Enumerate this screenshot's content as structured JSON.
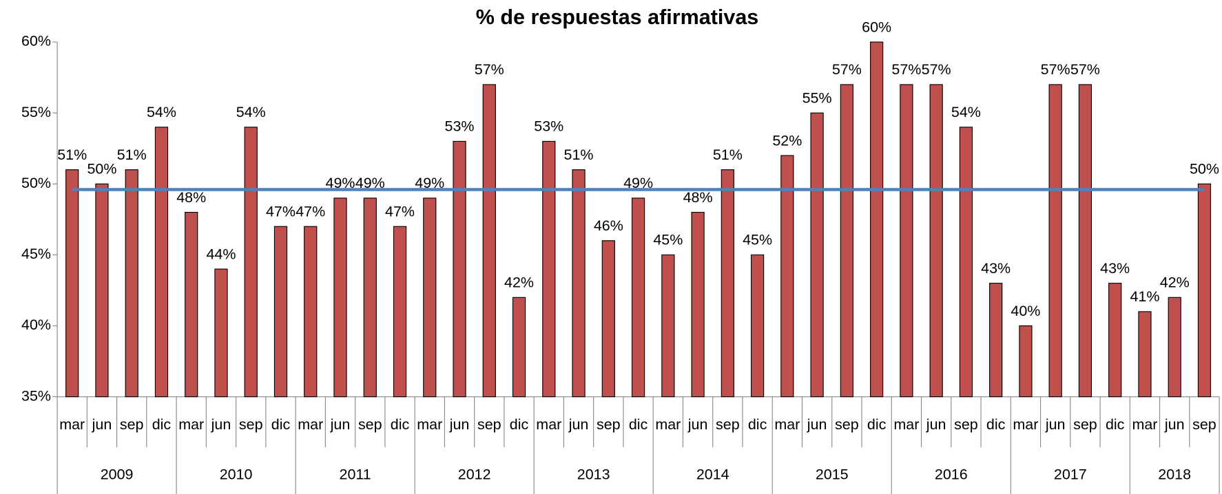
{
  "chart_data": {
    "type": "bar",
    "title": "% de respuestas afirmativas",
    "groups": [
      {
        "label": "2009",
        "categories": [
          "mar",
          "jun",
          "sep",
          "dic"
        ]
      },
      {
        "label": "2010",
        "categories": [
          "mar",
          "jun",
          "sep",
          "dic"
        ]
      },
      {
        "label": "2011",
        "categories": [
          "mar",
          "jun",
          "sep",
          "dic"
        ]
      },
      {
        "label": "2012",
        "categories": [
          "mar",
          "jun",
          "sep",
          "dic"
        ]
      },
      {
        "label": "2013",
        "categories": [
          "mar",
          "jun",
          "sep",
          "dic"
        ]
      },
      {
        "label": "2014",
        "categories": [
          "mar",
          "jun",
          "sep",
          "dic"
        ]
      },
      {
        "label": "2015",
        "categories": [
          "mar",
          "jun",
          "sep",
          "dic"
        ]
      },
      {
        "label": "2016",
        "categories": [
          "mar",
          "jun",
          "sep",
          "dic"
        ]
      },
      {
        "label": "2017",
        "categories": [
          "mar",
          "jun",
          "sep",
          "dic"
        ]
      },
      {
        "label": "2018",
        "categories": [
          "mar",
          "jun",
          "sep"
        ]
      }
    ],
    "series": [
      {
        "type": "bar",
        "color": "#c0504d",
        "values": [
          51,
          50,
          51,
          54,
          48,
          44,
          54,
          47,
          47,
          49,
          49,
          47,
          49,
          53,
          57,
          42,
          53,
          51,
          46,
          49,
          45,
          48,
          51,
          45,
          52,
          55,
          57,
          60,
          57,
          57,
          54,
          43,
          40,
          57,
          57,
          43,
          41,
          42,
          50
        ],
        "value_labels": [
          "51%",
          "50%",
          "51%",
          "54%",
          "48%",
          "44%",
          "54%",
          "47%",
          "47%",
          "49%",
          "49%",
          "47%",
          "49%",
          "53%",
          "57%",
          "42%",
          "53%",
          "51%",
          "46%",
          "49%",
          "45%",
          "48%",
          "51%",
          "45%",
          "52%",
          "55%",
          "57%",
          "60%",
          "57%",
          "57%",
          "54%",
          "43%",
          "40%",
          "57%",
          "57%",
          "43%",
          "41%",
          "42%",
          "50%"
        ]
      },
      {
        "type": "line",
        "color": "#4f81bd",
        "values": [
          49.6,
          49.6,
          49.6,
          49.6,
          49.6,
          49.6,
          49.6,
          49.6,
          49.6,
          49.6,
          49.6,
          49.6,
          49.6,
          49.6,
          49.6,
          49.6,
          49.6,
          49.6,
          49.6,
          49.6,
          49.6,
          49.6,
          49.6,
          49.6,
          49.6,
          49.6,
          49.6,
          49.6,
          49.6,
          49.6,
          49.6,
          49.6,
          49.6,
          49.6,
          49.6,
          49.6,
          49.6,
          49.6,
          49.6
        ]
      }
    ],
    "ylim": [
      35,
      60
    ],
    "yticks": [
      {
        "value": 35,
        "label": "35%"
      },
      {
        "value": 40,
        "label": "40%"
      },
      {
        "value": 45,
        "label": "45%"
      },
      {
        "value": 50,
        "label": "50%"
      },
      {
        "value": 55,
        "label": "55%"
      },
      {
        "value": 60,
        "label": "60%"
      }
    ],
    "grid": false
  }
}
